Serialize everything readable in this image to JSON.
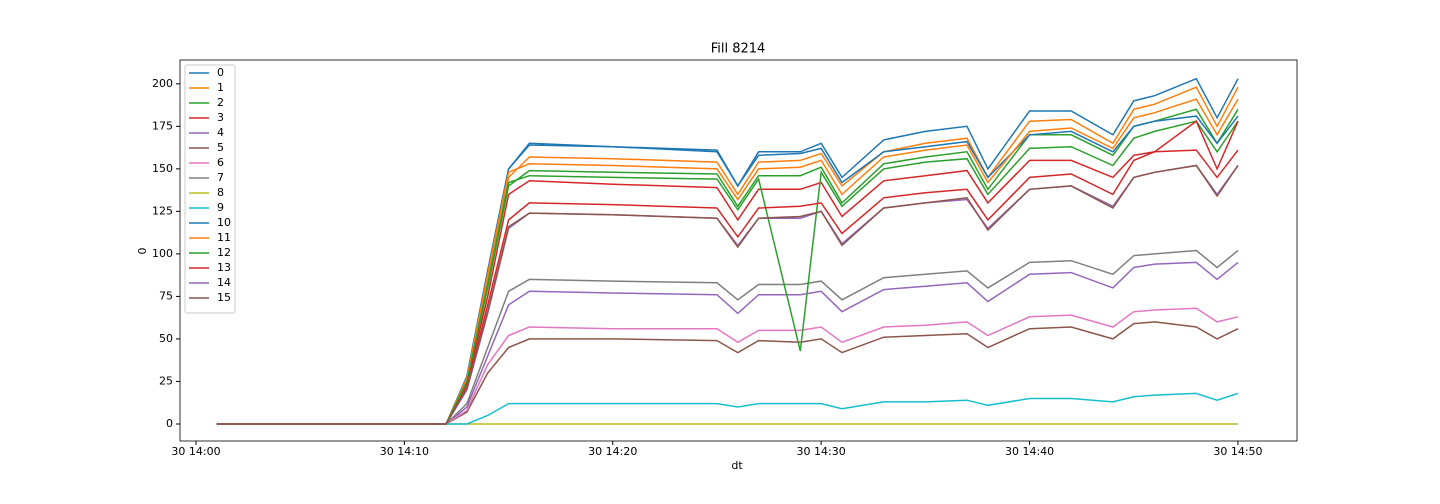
{
  "chart_data": {
    "type": "line",
    "title": "Fill 8214",
    "xlabel": "dt",
    "ylabel": "0",
    "x": [
      "30 14:01",
      "30 14:12",
      "30 14:13",
      "30 14:14",
      "30 14:15",
      "30 14:16",
      "30 14:20",
      "30 14:25",
      "30 14:26",
      "30 14:27",
      "30 14:29",
      "30 14:30",
      "30 14:31",
      "30 14:33",
      "30 14:35",
      "30 14:37",
      "30 14:38",
      "30 14:40",
      "30 14:42",
      "30 14:44",
      "30 14:45",
      "30 14:46",
      "30 14:48",
      "30 14:49",
      "30 14:50"
    ],
    "xlim": [
      "30 13:59:14",
      "30 14:52:50"
    ],
    "xticks": [
      "30 14:00",
      "30 14:10",
      "30 14:20",
      "30 14:30",
      "30 14:40",
      "30 14:50"
    ],
    "ylim": [
      -10,
      214
    ],
    "yticks": [
      0,
      25,
      50,
      75,
      100,
      125,
      150,
      175,
      200
    ],
    "legend": "upper left",
    "series": [
      {
        "name": "0",
        "color": "#1f77b4",
        "values": [
          0,
          0,
          28,
          90,
          150,
          164,
          163,
          161,
          140,
          160,
          160,
          165,
          145,
          167,
          172,
          175,
          150,
          184,
          184,
          170,
          190,
          193,
          203,
          180,
          203
        ]
      },
      {
        "name": "1",
        "color": "#ff7f0e",
        "values": [
          0,
          0,
          26,
          85,
          145,
          157,
          156,
          154,
          135,
          154,
          155,
          159,
          140,
          160,
          165,
          168,
          145,
          178,
          179,
          165,
          185,
          188,
          198,
          175,
          198
        ]
      },
      {
        "name": "2",
        "color": "#2ca02c",
        "values": [
          0,
          0,
          25,
          80,
          140,
          149,
          148,
          147,
          128,
          146,
          146,
          151,
          130,
          153,
          157,
          160,
          138,
          170,
          170,
          158,
          175,
          178,
          185,
          165,
          185
        ]
      },
      {
        "name": "3",
        "color": "#d62728",
        "values": [
          0,
          0,
          24,
          75,
          135,
          143,
          141,
          139,
          120,
          138,
          138,
          142,
          122,
          143,
          146,
          149,
          130,
          155,
          155,
          145,
          158,
          160,
          161,
          145,
          161
        ]
      },
      {
        "name": "4",
        "color": "#9467bd",
        "values": [
          0,
          0,
          10,
          40,
          70,
          78,
          77,
          76,
          65,
          76,
          76,
          78,
          66,
          79,
          81,
          83,
          72,
          88,
          89,
          80,
          92,
          94,
          95,
          85,
          95
        ]
      },
      {
        "name": "5",
        "color": "#8c564b",
        "values": [
          0,
          0,
          7,
          30,
          45,
          50,
          50,
          49,
          42,
          49,
          48,
          50,
          42,
          51,
          52,
          53,
          45,
          56,
          57,
          50,
          59,
          60,
          57,
          50,
          56
        ]
      },
      {
        "name": "6",
        "color": "#e377c2",
        "values": [
          0,
          0,
          8,
          35,
          52,
          57,
          56,
          56,
          48,
          55,
          55,
          57,
          48,
          57,
          58,
          60,
          52,
          63,
          64,
          57,
          66,
          67,
          68,
          60,
          63
        ]
      },
      {
        "name": "7",
        "color": "#7f7f7f",
        "values": [
          0,
          0,
          12,
          45,
          78,
          85,
          84,
          83,
          73,
          82,
          82,
          84,
          73,
          86,
          88,
          90,
          80,
          95,
          96,
          88,
          99,
          100,
          102,
          92,
          102
        ]
      },
      {
        "name": "8",
        "color": "#bcbd22",
        "values": [
          0,
          0,
          0,
          0,
          0,
          0,
          0,
          0,
          0,
          0,
          0,
          0,
          0,
          0,
          0,
          0,
          0,
          0,
          0,
          0,
          0,
          0,
          0,
          0,
          0
        ]
      },
      {
        "name": "9",
        "color": "#17becf",
        "values": [
          0,
          0,
          0,
          5,
          12,
          12,
          12,
          12,
          10,
          12,
          12,
          12,
          9,
          13,
          13,
          14,
          11,
          15,
          15,
          13,
          16,
          17,
          18,
          14,
          18
        ]
      },
      {
        "name": "10",
        "color": "#1f77b4",
        "values": [
          0,
          0,
          28,
          90,
          150,
          165,
          163,
          160,
          140,
          158,
          159,
          162,
          142,
          160,
          163,
          166,
          145,
          170,
          172,
          160,
          175,
          178,
          181,
          165,
          181
        ]
      },
      {
        "name": "11",
        "color": "#ff7f0e",
        "values": [
          0,
          0,
          27,
          88,
          148,
          153,
          152,
          150,
          132,
          150,
          151,
          155,
          135,
          157,
          161,
          164,
          142,
          172,
          174,
          162,
          180,
          183,
          191,
          170,
          191
        ]
      },
      {
        "name": "12",
        "color": "#2ca02c",
        "values": [
          0,
          0,
          25,
          82,
          142,
          146,
          145,
          144,
          126,
          144,
          43,
          148,
          128,
          150,
          154,
          156,
          135,
          162,
          163,
          152,
          168,
          172,
          178,
          160,
          178
        ]
      },
      {
        "name": "13",
        "color": "#d62728",
        "values": [
          0,
          0,
          22,
          70,
          120,
          130,
          129,
          127,
          110,
          127,
          128,
          130,
          112,
          133,
          136,
          138,
          120,
          145,
          147,
          135,
          155,
          160,
          178,
          150,
          178
        ]
      },
      {
        "name": "14",
        "color": "#9467bd",
        "values": [
          0,
          0,
          20,
          65,
          115,
          124,
          123,
          121,
          105,
          121,
          121,
          125,
          106,
          127,
          130,
          132,
          115,
          138,
          140,
          128,
          145,
          148,
          152,
          135,
          152
        ]
      },
      {
        "name": "15",
        "color": "#8c564b",
        "values": [
          0,
          0,
          21,
          66,
          116,
          124,
          123,
          121,
          104,
          121,
          122,
          125,
          105,
          127,
          130,
          133,
          114,
          138,
          140,
          127,
          145,
          148,
          152,
          134,
          152
        ]
      }
    ]
  }
}
